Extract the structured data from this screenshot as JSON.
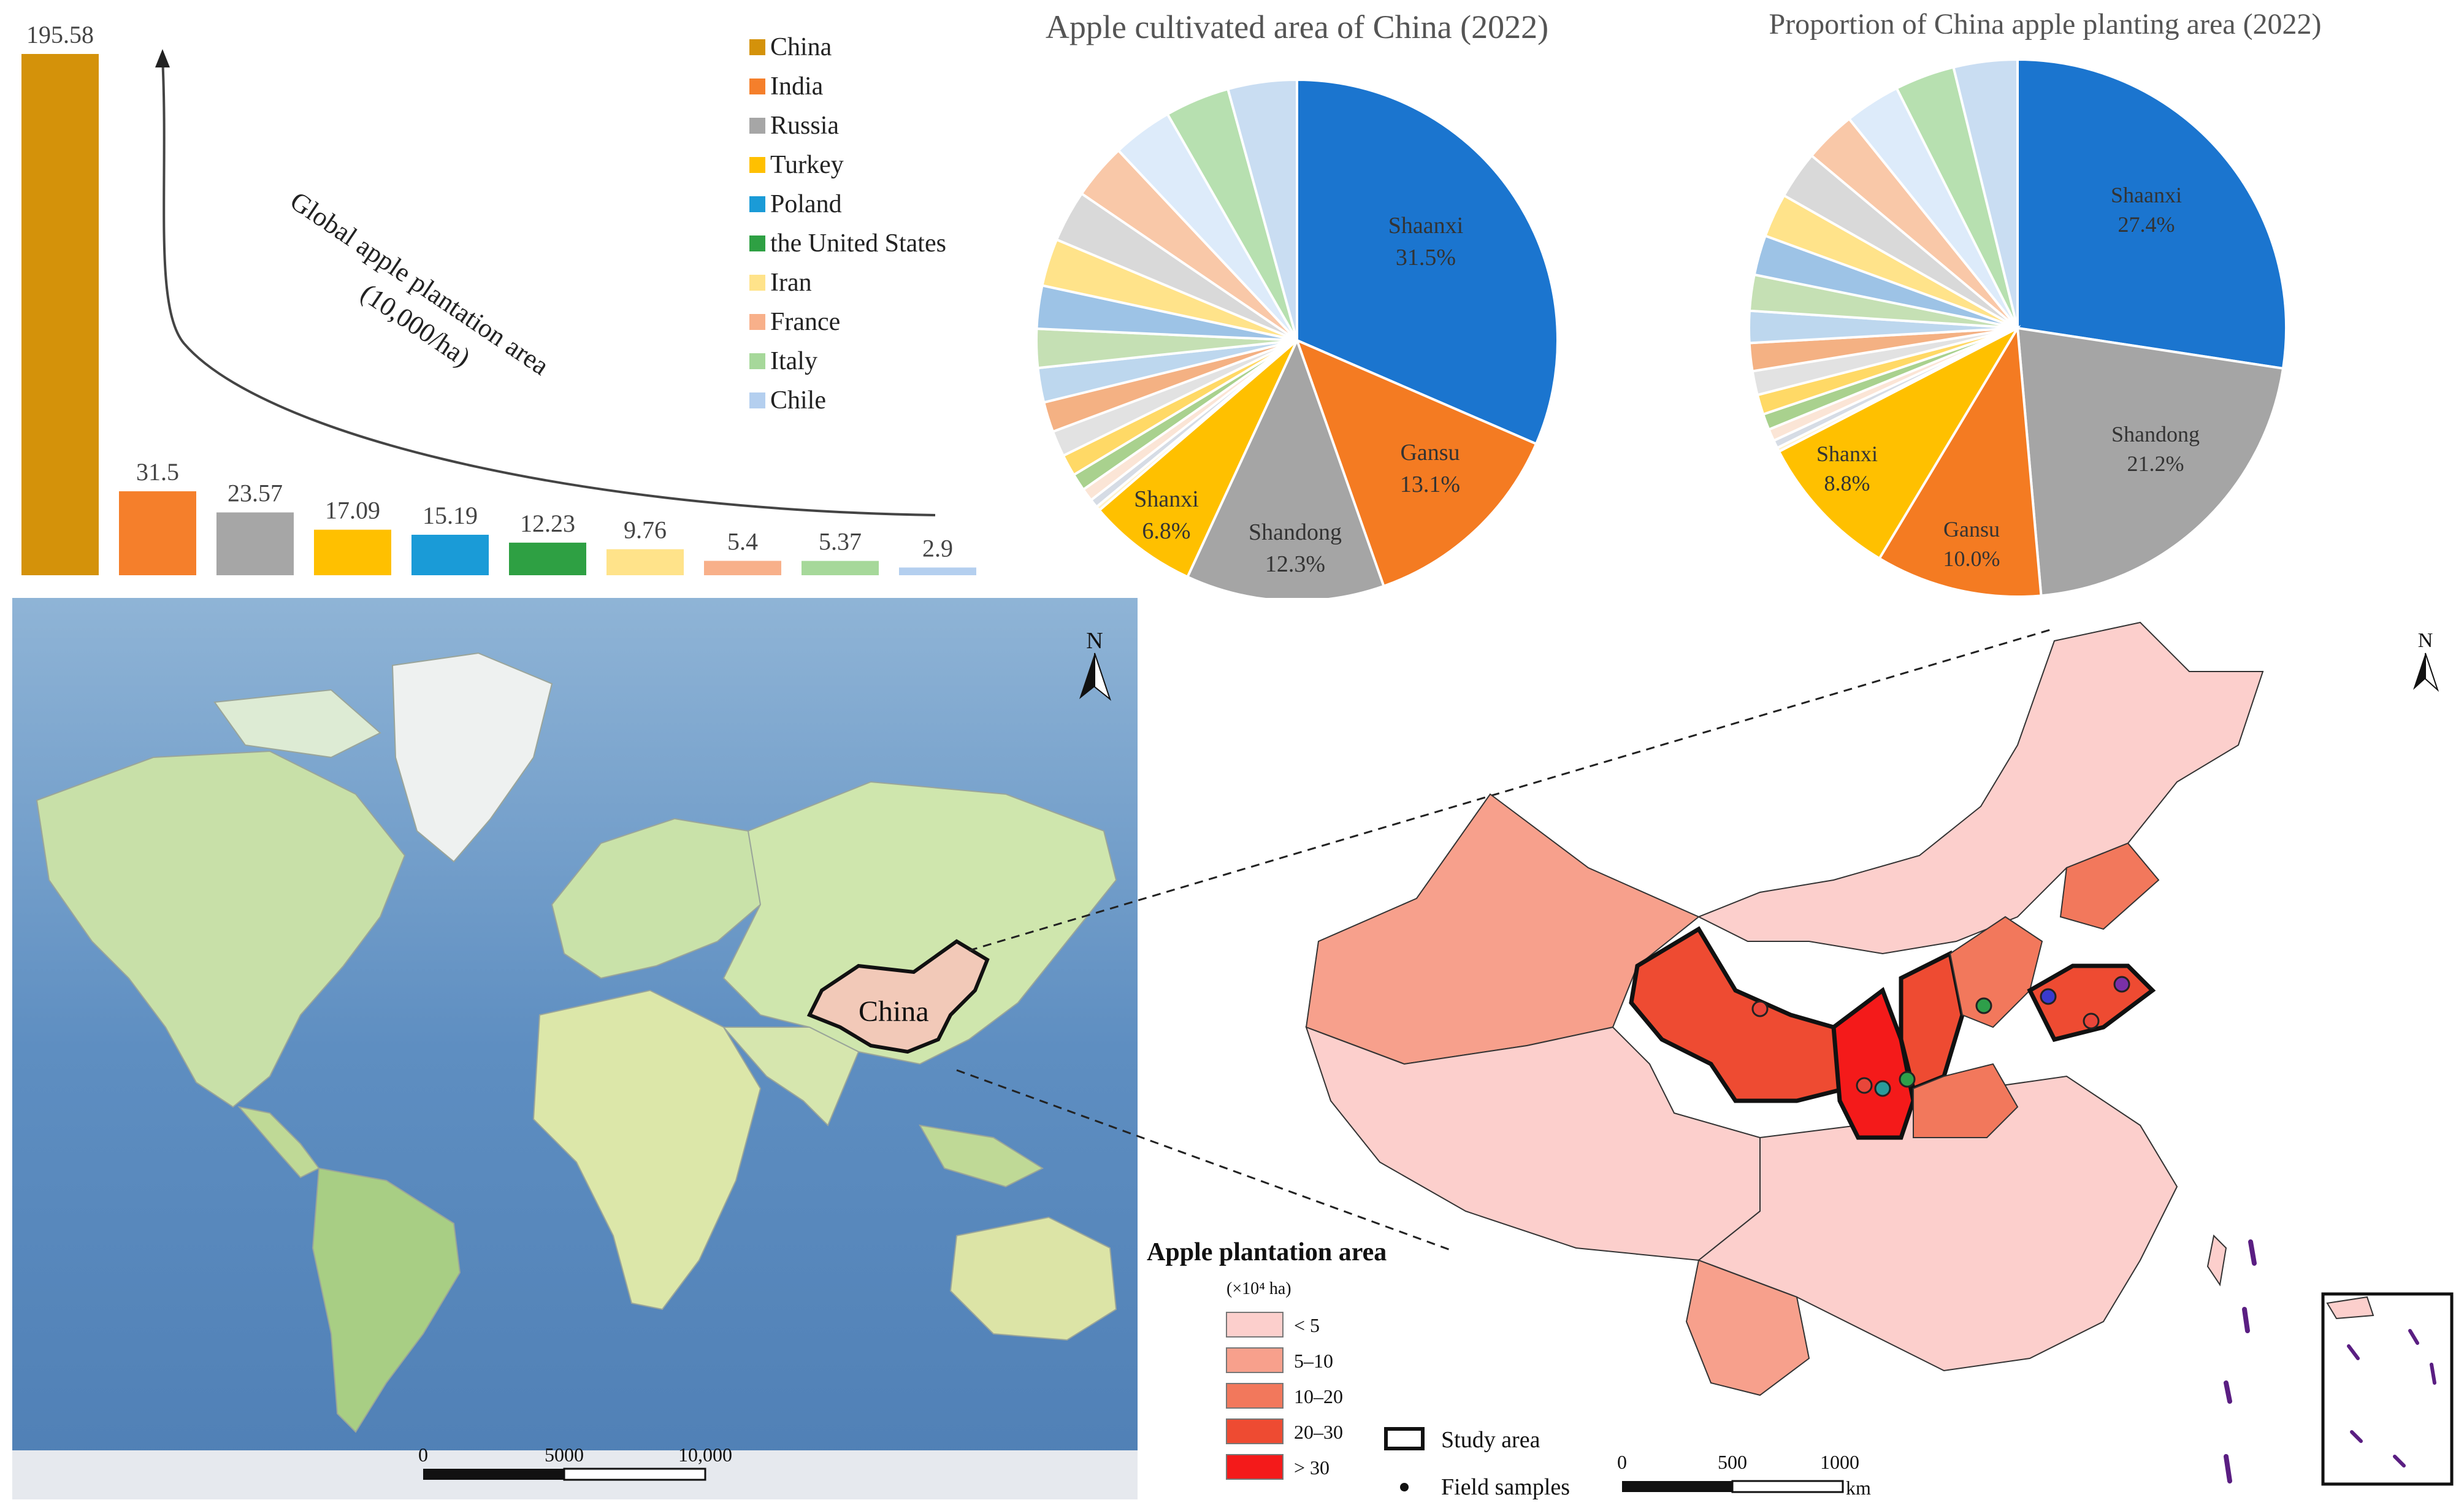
{
  "bar_chart": {
    "title": "Global apple plantation area",
    "unit": "(10,000/ha)",
    "categories": [
      "China",
      "India",
      "Russia",
      "Turkey",
      "Poland",
      "the United States",
      "Iran",
      "France",
      "Italy",
      "Chile"
    ],
    "values": [
      195.58,
      31.5,
      23.57,
      17.09,
      15.19,
      12.23,
      9.76,
      5.4,
      5.37,
      2.9
    ],
    "value_labels": [
      "195.58",
      "31.5",
      "23.57",
      "17.09",
      "15.19",
      "12.23",
      "9.76",
      "5.4",
      "5.37",
      "2.9"
    ],
    "colors": [
      "#D4920A",
      "#F57F2B",
      "#A6A6A6",
      "#FFC000",
      "#1A9BD7",
      "#2EA043",
      "#FFE38A",
      "#F8B08A",
      "#A6D89A",
      "#B4CFEF"
    ]
  },
  "pie_left": {
    "title": "Apple cultivated area of China (2022)",
    "labels": [
      "Shaanxi",
      "Gansu",
      "Shandong",
      "Shanxi"
    ],
    "percents": [
      "31.5%",
      "13.1%",
      "12.3%",
      "6.8%"
    ]
  },
  "pie_right": {
    "title": "Proportion of China apple planting area (2022)",
    "labels": [
      "Shaanxi",
      "Shandong",
      "Gansu",
      "Shanxi"
    ],
    "percents": [
      "27.4%",
      "21.2%",
      "10.0%",
      "8.8%"
    ]
  },
  "world_map": {
    "north": "N",
    "china_label": "China",
    "scale_ticks": [
      "0",
      "5000",
      "10,000"
    ]
  },
  "china_map": {
    "north": "N",
    "legend": {
      "title": "Apple plantation area",
      "unit": "(×10⁴ ha)",
      "classes": [
        {
          "label": "< 5",
          "color": "#FCCFCC"
        },
        {
          "label": "5–10",
          "color": "#F7A08C"
        },
        {
          "label": "10–20",
          "color": "#F2785C"
        },
        {
          "label": "20–30",
          "color": "#EE4B32"
        },
        {
          "label": "> 30",
          "color": "#F41A1A"
        }
      ],
      "study_area": "Study area",
      "field_samples": "Field samples"
    },
    "scale_ticks": [
      "0",
      "500",
      "1000"
    ],
    "scale_unit": "km"
  },
  "chart_data": [
    {
      "type": "bar",
      "title": "Global apple plantation area",
      "ylabel": "(10,000/ha)",
      "categories": [
        "China",
        "India",
        "Russia",
        "Turkey",
        "Poland",
        "the United States",
        "Iran",
        "France",
        "Italy",
        "Chile"
      ],
      "values": [
        195.58,
        31.5,
        23.57,
        17.09,
        15.19,
        12.23,
        9.76,
        5.4,
        5.37,
        2.9
      ],
      "legend": "top-right"
    },
    {
      "type": "pie",
      "title": "Apple cultivated area of China (2022)",
      "labels": [
        "Shaanxi",
        "Gansu",
        "Shandong",
        "Shanxi"
      ],
      "values": [
        31.5,
        13.1,
        12.3,
        6.8
      ]
    },
    {
      "type": "pie",
      "title": "Proportion of China apple planting area (2022)",
      "labels": [
        "Shaanxi",
        "Shandong",
        "Gansu",
        "Shanxi"
      ],
      "values": [
        27.4,
        21.2,
        10.0,
        8.8
      ]
    }
  ]
}
